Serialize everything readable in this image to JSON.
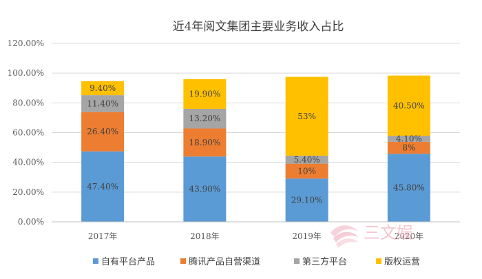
{
  "chart_data": {
    "type": "bar",
    "stacked": true,
    "title": "近4年阅文集团主要业务收入占比",
    "categories": [
      "2017年",
      "2018年",
      "2019年",
      "2020年"
    ],
    "ylim": [
      0,
      120
    ],
    "yticks": [
      "0.00%",
      "20.00%",
      "40.00%",
      "60.00%",
      "80.00%",
      "100.00%",
      "120.00%"
    ],
    "grid": true,
    "legend_position": "bottom",
    "series": [
      {
        "name": "自有平台产品",
        "color": "#5b9bd5",
        "values": [
          47.4,
          43.9,
          29.1,
          45.8
        ],
        "labels": [
          "47.40%",
          "43.90%",
          "29.10%",
          "45.80%"
        ]
      },
      {
        "name": "腾讯产品自营渠道",
        "color": "#ed7d31",
        "values": [
          26.4,
          18.9,
          10,
          8
        ],
        "labels": [
          "26.40%",
          "18.90%",
          "10%",
          "8%"
        ]
      },
      {
        "name": "第三方平台",
        "color": "#a5a5a5",
        "values": [
          11.4,
          13.2,
          5.4,
          4.1
        ],
        "labels": [
          "11.40%",
          "13.20%",
          "5.40%",
          "4.10%"
        ]
      },
      {
        "name": "版权运营",
        "color": "#ffc000",
        "values": [
          9.4,
          19.9,
          53,
          40.5
        ],
        "labels": [
          "9.40%",
          "19.90%",
          "53%",
          "40.50%"
        ]
      }
    ]
  },
  "watermark": {
    "text": "三文娱",
    "color": "#f2b8c6"
  }
}
